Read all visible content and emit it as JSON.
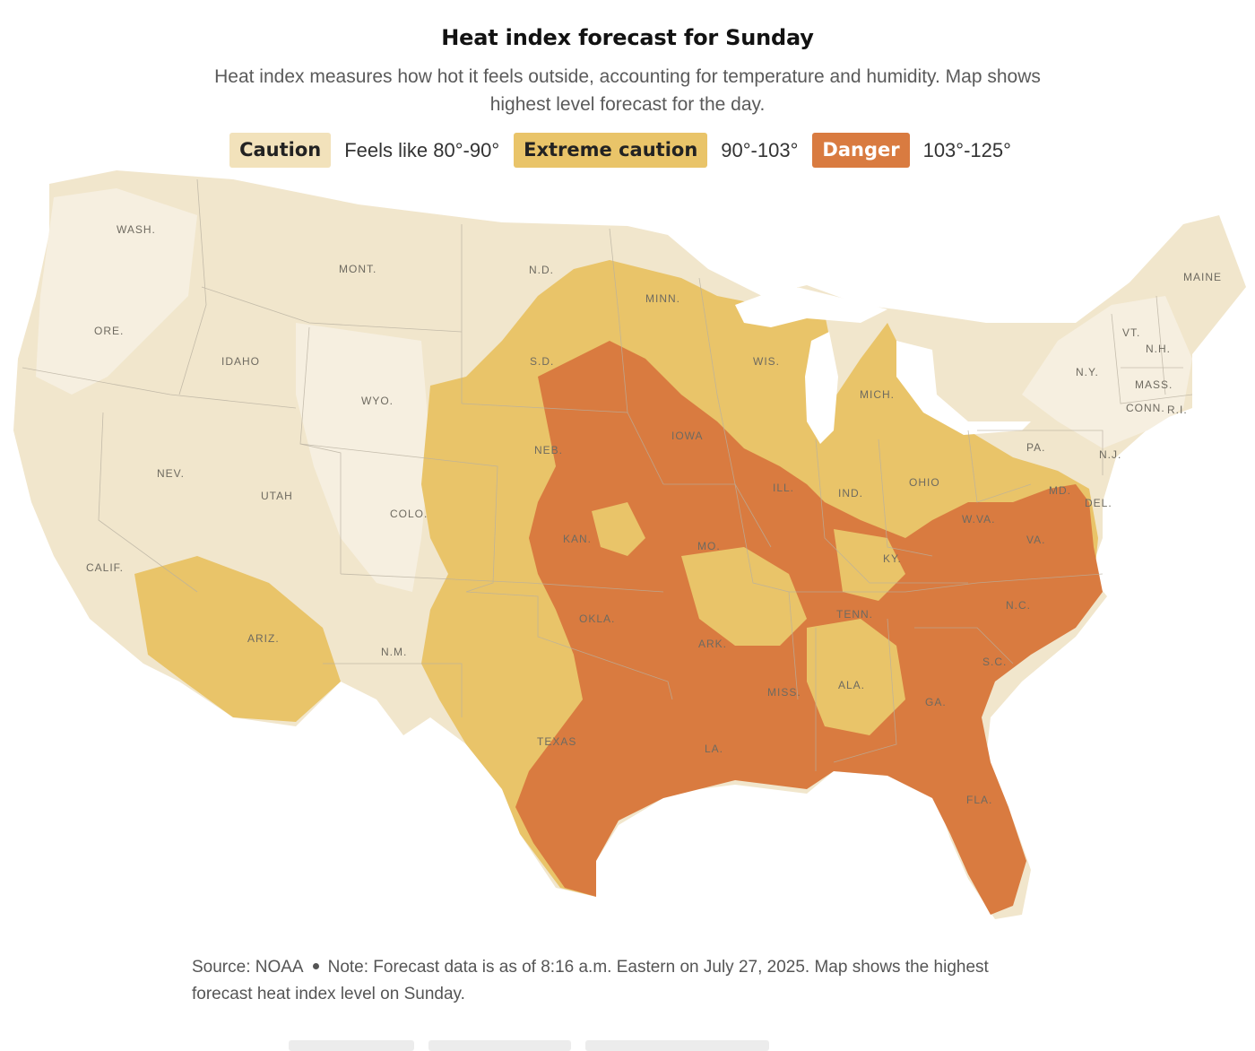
{
  "header": {
    "title": "Heat index forecast for Sunday",
    "subtitle": "Heat index measures how hot it feels outside, accounting for temperature and humidity. Map shows highest level forecast for the day."
  },
  "legend": [
    {
      "label": "Caution",
      "range": "Feels like 80°-90°",
      "color": "#f2e2bb"
    },
    {
      "label": "Extreme caution",
      "range": "90°-103°",
      "color": "#e9c469"
    },
    {
      "label": "Danger",
      "range": "103°-125°",
      "color": "#d97b40"
    }
  ],
  "map": {
    "background_color": "#f5efe2",
    "state_labels": {
      "wash": "WASH.",
      "ore": "ORE.",
      "calif": "CALIF.",
      "idaho": "IDAHO",
      "nev": "NEV.",
      "mont": "MONT.",
      "wyo": "WYO.",
      "utah": "UTAH",
      "ariz": "ARIZ.",
      "colo": "COLO.",
      "nm": "N.M.",
      "nd": "N.D.",
      "sd": "S.D.",
      "neb": "NEB.",
      "kan": "KAN.",
      "okla": "OKLA.",
      "texas": "TEXAS",
      "minn": "MINN.",
      "iowa": "IOWA",
      "mo": "MO.",
      "ark": "ARK.",
      "la": "LA.",
      "wis": "WIS.",
      "ill": "ILL.",
      "mich": "MICH.",
      "ind": "IND.",
      "ohio": "OHIO",
      "ky": "KY.",
      "tenn": "TENN.",
      "miss": "MISS.",
      "ala": "ALA.",
      "ga": "GA.",
      "fla": "FLA.",
      "sc": "S.C.",
      "nc": "N.C.",
      "va": "VA.",
      "wva": "W.VA.",
      "md": "MD.",
      "del": "DEL.",
      "pa": "PA.",
      "nj": "N.J.",
      "ny": "N.Y.",
      "vt": "VT.",
      "nh": "N.H.",
      "maine": "MAINE",
      "mass": "MASS.",
      "conn": "CONN.",
      "ri": "R.I."
    }
  },
  "footer": {
    "source": "Source: NOAA",
    "note": "Note: Forecast data is as of 8:16 a.m. Eastern on July 27, 2025. Map shows the highest forecast heat index level on Sunday."
  }
}
